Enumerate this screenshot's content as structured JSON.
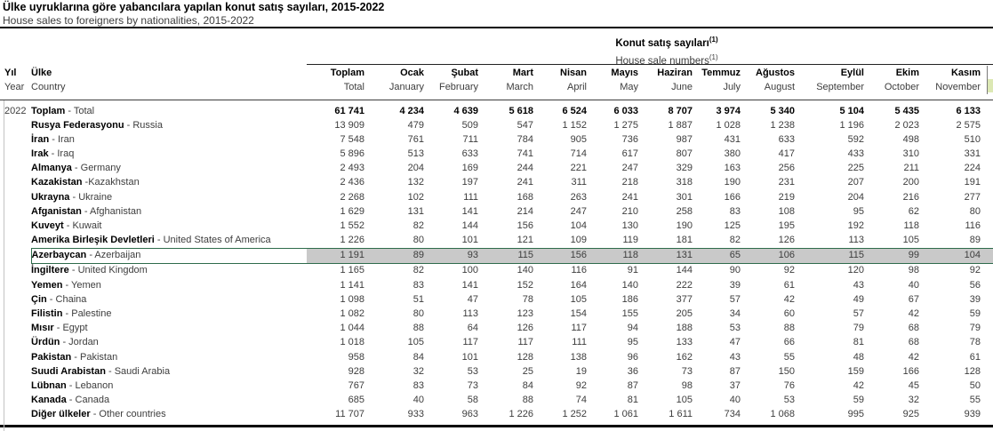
{
  "title": {
    "tr": "Ülke uyruklarına göre yabancılara yapılan konut satış sayıları, 2015-2022",
    "en": "House sales to foreigners by nationalities, 2015-2022"
  },
  "group_header": {
    "tr": "Konut satış sayıları",
    "en": "House sale numbers",
    "footnote_marker": "(1)"
  },
  "columns": {
    "year": {
      "tr": "Yıl",
      "en": "Year"
    },
    "country": {
      "tr": "Ülke",
      "en": "Country"
    },
    "months": [
      {
        "tr": "Toplam",
        "en": "Total"
      },
      {
        "tr": "Ocak",
        "en": "January"
      },
      {
        "tr": "Şubat",
        "en": "February"
      },
      {
        "tr": "Mart",
        "en": "March"
      },
      {
        "tr": "Nisan",
        "en": "April"
      },
      {
        "tr": "Mayıs",
        "en": "May"
      },
      {
        "tr": "Haziran",
        "en": "June"
      },
      {
        "tr": "Temmuz",
        "en": "July"
      },
      {
        "tr": "Ağustos",
        "en": "August"
      },
      {
        "tr": "Eylül",
        "en": "September"
      },
      {
        "tr": "Ekim",
        "en": "October"
      },
      {
        "tr": "Kasım",
        "en": "November"
      }
    ]
  },
  "year_value": "2022",
  "colors": {
    "highlight_fill": "#c9c9c9",
    "highlight_border": "#2e6b4b",
    "partial_cell_fill": "#dce8b4"
  },
  "rows": [
    {
      "tr": "Toplam",
      "en": " - Total",
      "totals": true,
      "values": [
        "61 741",
        "4 234",
        "4 639",
        "5 618",
        "6 524",
        "6 033",
        "8 707",
        "3 974",
        "5 340",
        "5 104",
        "5 435",
        "6 133"
      ]
    },
    {
      "tr": "Rusya Federasyonu",
      "en": " - Russia",
      "values": [
        "13 909",
        "479",
        "509",
        "547",
        "1 152",
        "1 275",
        "1 887",
        "1 028",
        "1 238",
        "1 196",
        "2 023",
        "2 575"
      ]
    },
    {
      "tr": "İran",
      "en": " - Iran",
      "values": [
        "7 548",
        "761",
        "711",
        "784",
        "905",
        "736",
        "987",
        "431",
        "633",
        "592",
        "498",
        "510"
      ]
    },
    {
      "tr": "Irak",
      "en": " - Iraq",
      "values": [
        "5 896",
        "513",
        "633",
        "741",
        "714",
        "617",
        "807",
        "380",
        "417",
        "433",
        "310",
        "331"
      ]
    },
    {
      "tr": "Almanya",
      "en": " - Germany",
      "values": [
        "2 493",
        "204",
        "169",
        "244",
        "221",
        "247",
        "329",
        "163",
        "256",
        "225",
        "211",
        "224"
      ]
    },
    {
      "tr": "Kazakistan",
      "en": " -Kazakhstan",
      "values": [
        "2 436",
        "132",
        "197",
        "241",
        "311",
        "218",
        "318",
        "190",
        "231",
        "207",
        "200",
        "191"
      ]
    },
    {
      "tr": "Ukrayna",
      "en": " - Ukraine",
      "values": [
        "2 268",
        "102",
        "111",
        "168",
        "263",
        "241",
        "301",
        "166",
        "219",
        "204",
        "216",
        "277"
      ]
    },
    {
      "tr": "Afganistan",
      "en": " - Afghanistan",
      "values": [
        "1 629",
        "131",
        "141",
        "214",
        "247",
        "210",
        "258",
        "83",
        "108",
        "95",
        "62",
        "80"
      ]
    },
    {
      "tr": "Kuveyt",
      "en": " - Kuwait",
      "values": [
        "1 552",
        "82",
        "144",
        "156",
        "104",
        "130",
        "190",
        "125",
        "195",
        "192",
        "118",
        "116"
      ]
    },
    {
      "tr": "Amerika Birleşik Devletleri",
      "en": " - United States of America",
      "values": [
        "1 226",
        "80",
        "101",
        "121",
        "109",
        "119",
        "181",
        "82",
        "126",
        "113",
        "105",
        "89"
      ]
    },
    {
      "tr": "Azerbaycan",
      "en": " - Azerbaijan",
      "highlight": true,
      "values": [
        "1 191",
        "89",
        "93",
        "115",
        "156",
        "118",
        "131",
        "65",
        "106",
        "115",
        "99",
        "104"
      ]
    },
    {
      "tr": "İngiltere",
      "en": " - United Kingdom",
      "values": [
        "1 165",
        "82",
        "100",
        "140",
        "116",
        "91",
        "144",
        "90",
        "92",
        "120",
        "98",
        "92"
      ]
    },
    {
      "tr": "Yemen",
      "en": " - Yemen",
      "values": [
        "1 141",
        "83",
        "141",
        "152",
        "164",
        "140",
        "222",
        "39",
        "61",
        "43",
        "40",
        "56"
      ]
    },
    {
      "tr": "Çin",
      "en": " - Chaina",
      "values": [
        "1 098",
        "51",
        "47",
        "78",
        "105",
        "186",
        "377",
        "57",
        "42",
        "49",
        "67",
        "39"
      ]
    },
    {
      "tr": "Filistin",
      "en": " - Palestine",
      "values": [
        "1 082",
        "80",
        "113",
        "123",
        "154",
        "155",
        "205",
        "34",
        "60",
        "57",
        "42",
        "59"
      ]
    },
    {
      "tr": "Mısır",
      "en": " - Egypt",
      "values": [
        "1 044",
        "88",
        "64",
        "126",
        "117",
        "94",
        "188",
        "53",
        "88",
        "79",
        "68",
        "79"
      ]
    },
    {
      "tr": "Ürdün",
      "en": " - Jordan",
      "values": [
        "1 018",
        "105",
        "117",
        "117",
        "111",
        "95",
        "133",
        "47",
        "66",
        "81",
        "68",
        "78"
      ]
    },
    {
      "tr": "Pakistan",
      "en": " - Pakistan",
      "values": [
        "958",
        "84",
        "101",
        "128",
        "138",
        "96",
        "162",
        "43",
        "55",
        "48",
        "42",
        "61"
      ]
    },
    {
      "tr": "Suudi Arabistan",
      "en": " - Saudi Arabia",
      "values": [
        "928",
        "32",
        "53",
        "25",
        "19",
        "36",
        "73",
        "87",
        "150",
        "159",
        "166",
        "128"
      ]
    },
    {
      "tr": "Lübnan",
      "en": " - Lebanon",
      "values": [
        "767",
        "83",
        "73",
        "84",
        "92",
        "87",
        "98",
        "37",
        "76",
        "42",
        "45",
        "50"
      ]
    },
    {
      "tr": "Kanada",
      "en": " - Canada",
      "values": [
        "685",
        "40",
        "58",
        "88",
        "74",
        "81",
        "105",
        "40",
        "53",
        "59",
        "32",
        "55"
      ]
    },
    {
      "tr": "Diğer ülkeler",
      "en": " - Other countries",
      "values": [
        "11 707",
        "933",
        "963",
        "1 226",
        "1 252",
        "1 061",
        "1 611",
        "734",
        "1 068",
        "995",
        "925",
        "939"
      ]
    }
  ]
}
